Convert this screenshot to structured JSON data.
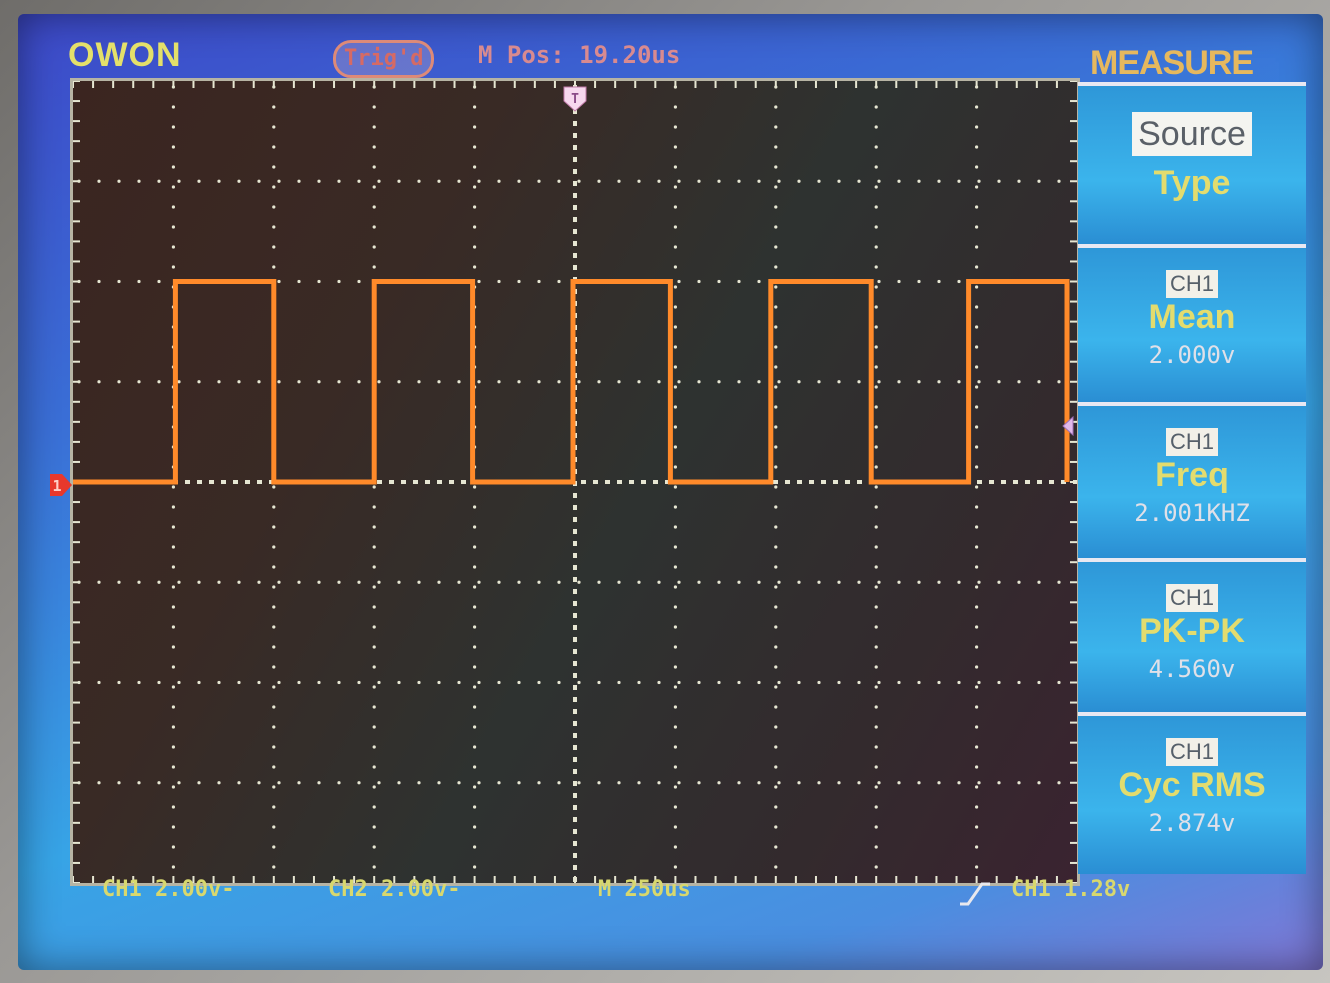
{
  "header": {
    "brand": "OWON",
    "trigger_status": "Trig'd",
    "position_label": "M Pos: 19.20us"
  },
  "menu": {
    "title": "MEASURE",
    "source_button": "Source",
    "type_button": "Type",
    "measurements": [
      {
        "channel": "CH1",
        "name": "Mean",
        "value": "2.000v"
      },
      {
        "channel": "CH1",
        "name": "Freq",
        "value": "2.001KHZ"
      },
      {
        "channel": "CH1",
        "name": "PK-PK",
        "value": "4.560v"
      },
      {
        "channel": "CH1",
        "name": "Cyc RMS",
        "value": "2.874v"
      }
    ]
  },
  "status_bar": {
    "ch1_scale": "CH1 2.00v-",
    "ch2_scale": "CH2 2.00v-",
    "timebase": "M 250us",
    "trigger_source_level": "CH1 1.28v"
  },
  "markers": {
    "trigger_position": "T",
    "channel1": "1"
  },
  "colors": {
    "trace": "#ff8a2a",
    "grid_dots": "#e6e6d2",
    "heading": "#e3dc6e"
  },
  "chart_data": {
    "type": "line",
    "xlabel": "",
    "ylabel": "",
    "grid": true,
    "divisions": {
      "x": 10,
      "y": 8
    },
    "series": [
      {
        "x": [
          -5.0,
          -3.98,
          -3.98,
          -3.0,
          -3.0,
          -2.0,
          -2.0,
          -1.02,
          -1.02,
          -0.02,
          -0.02,
          0.95,
          0.95,
          1.95,
          1.95,
          2.95,
          2.95,
          3.92,
          3.92,
          4.9,
          4.9
        ],
        "y": [
          0,
          0,
          2,
          2,
          0,
          0,
          2,
          2,
          0,
          0,
          2,
          2,
          0,
          0,
          2,
          2,
          0,
          0,
          2,
          2,
          0
        ]
      }
    ]
  }
}
